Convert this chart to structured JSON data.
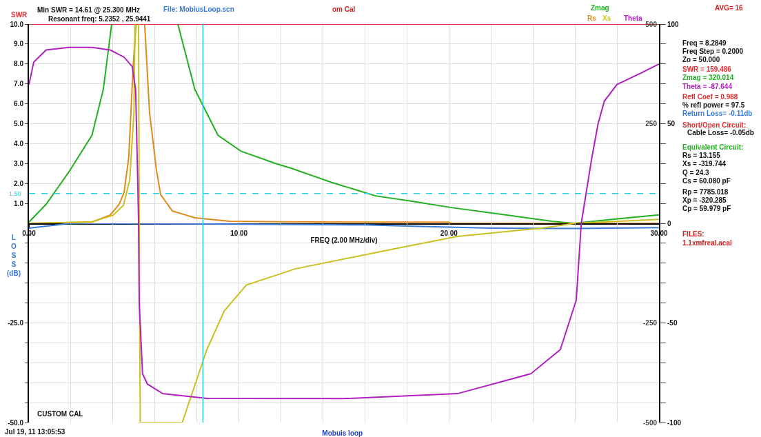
{
  "chart_data": [
    {
      "type": "line",
      "title": "Mobuis loop",
      "xlabel": "FREQ (2.00 MHz/div)",
      "xlim": [
        0,
        30
      ],
      "xticks": [
        {
          "value": 0,
          "label": "0.00"
        },
        {
          "value": 2,
          "label": null
        },
        {
          "value": 4,
          "label": null
        },
        {
          "value": 6,
          "label": null
        },
        {
          "value": 8,
          "label": null
        },
        {
          "value": 10,
          "label": "10.00"
        },
        {
          "value": 12,
          "label": null
        },
        {
          "value": 14,
          "label": null
        },
        {
          "value": 16,
          "label": null
        },
        {
          "value": 18,
          "label": null
        },
        {
          "value": 20,
          "label": "20.00"
        },
        {
          "value": 22,
          "label": null
        },
        {
          "value": 24,
          "label": null
        },
        {
          "value": 26,
          "label": null
        },
        {
          "value": 28,
          "label": null
        },
        {
          "value": 30,
          "label": "30.00"
        }
      ],
      "ylim": [
        0,
        10
      ],
      "yticks": [
        {
          "value": 1,
          "label": "1.0"
        },
        {
          "value": 2,
          "label": "2.0"
        },
        {
          "value": 3,
          "label": "3.0"
        },
        {
          "value": 4,
          "label": "4.0"
        },
        {
          "value": 5,
          "label": "5.0"
        },
        {
          "value": 6,
          "label": "6.0"
        },
        {
          "value": 7,
          "label": "7.0"
        },
        {
          "value": 8,
          "label": "8.0"
        },
        {
          "value": 9,
          "label": "9.0"
        },
        {
          "value": 10,
          "label": "10.0"
        }
      ],
      "y2lim": [
        0,
        500
      ],
      "y2ticks": [
        500,
        250
      ],
      "y3lim": [
        0,
        100
      ],
      "y3ticks": [
        100,
        {
          "value": 90,
          "label": null
        },
        {
          "value": 80,
          "label": null
        },
        {
          "value": 70,
          "label": null
        },
        {
          "value": 60,
          "label": null
        },
        50,
        {
          "value": 40,
          "label": null
        },
        {
          "value": 30,
          "label": null
        },
        {
          "value": 20,
          "label": null
        },
        {
          "value": 10,
          "label": null
        },
        0
      ],
      "series": [
        {
          "name": "SWR",
          "color": "#e03030",
          "x": [
            0,
            30
          ],
          "values": [
            10,
            10
          ]
        },
        {
          "name": "Zmag",
          "color": "#22b022",
          "axis": "y2",
          "x": [
            0,
            0.82,
            1.9,
            3.0,
            3.54,
            3.94,
            5.5,
            7.09,
            7.9,
            9.0,
            10.1,
            11.75,
            12.5,
            14.4,
            16.5,
            18.3,
            20.05,
            22.7,
            24.9,
            25.96,
            27.6,
            30
          ],
          "values": [
            3,
            48,
            129,
            221,
            336,
            500,
            null,
            500,
            336,
            221,
            181,
            150,
            138,
            103,
            69,
            55,
            40,
            21,
            5,
            0,
            9,
            21
          ]
        },
        {
          "name": "Rs",
          "color": "#e08a1e",
          "axis": "y2",
          "x": [
            0,
            2,
            3,
            3.87,
            4.3,
            4.53,
            4.75,
            4.96,
            5.1,
            5.3,
            5.51,
            5.74,
            6.07,
            6.27,
            6.83,
            7.9,
            9.55,
            12,
            16,
            20,
            20.1,
            30
          ],
          "values": [
            0,
            2,
            3,
            21,
            48,
            78,
            164,
            393,
            500,
            null,
            500,
            279,
            134,
            72,
            31,
            14,
            5,
            4,
            3,
            3,
            0,
            0
          ]
        },
        {
          "name": "Xs",
          "color": "#c8c020",
          "axis": "y2",
          "x": [
            0,
            2,
            3,
            4,
            4.5,
            4.8,
            5.0,
            5.05,
            5.15,
            5.22,
            5.25,
            15,
            26,
            30
          ],
          "values": [
            0,
            2,
            4,
            20,
            45,
            110,
            280,
            500,
            null,
            500,
            0,
            null,
            0,
            10
          ]
        },
        {
          "name": "Theta",
          "color": "#b020c0",
          "axis": "y3",
          "x": [
            0,
            0.23,
            0.82,
            1.9,
            3.0,
            3.87,
            4.53,
            4.92,
            5.08,
            5.18,
            5.22,
            15,
            26.3,
            26.8,
            27.1,
            27.4,
            28.0,
            29.1,
            30
          ],
          "values": [
            69.7,
            81,
            87,
            88.3,
            88.3,
            87,
            83.4,
            78.6,
            67,
            21,
            0,
            null,
            0,
            32.8,
            50,
            61.4,
            69.7,
            75.2,
            80
          ]
        }
      ],
      "ref_lines": [
        {
          "axis": "x",
          "value": 8.2849,
          "color": "#30d0e0",
          "line_style": "solid"
        },
        {
          "axis": "y",
          "value": 1.5,
          "label": "1.50",
          "color": "#30d0e0",
          "line_style": "dashed"
        }
      ],
      "annotations": [
        "Min SWR = 14.61 @ 25.300 MHz",
        "Resonant freq: 5.2352 , 25.9441",
        "File: MobiusLoop.scn",
        "om Cal",
        "AVG= 16",
        "Freq = 8.2849",
        "Freq Step = 0.2000",
        "Zo = 50.000",
        "SWR = 159.486",
        "Zmag = 320.014",
        "Theta = -87.644",
        "Refl Coef = 0.988",
        "% refl power = 97.5",
        "Return Loss= -0.11db",
        "Short/Open Circuit:",
        "Cable Loss= -0.05db",
        "Equivalent Circuit:",
        "Rs = 13.155",
        "Xs = -319.744",
        "Q = 24.3",
        "Cs = 60.080 pF",
        "Rp = 7785.018",
        "Xp = -320.285",
        "Cp = 59.979 pF",
        "FILES:",
        "1.1xmfreal.acal",
        "CUSTOM CAL",
        "Jul 19, 11 13:05:53"
      ],
      "grid": true,
      "legend": false,
      "marker": "none",
      "line_style": "solid"
    },
    {
      "type": "line",
      "ylabel": "LOSS (dB)",
      "tick_labels": "y",
      "xlim": [
        0,
        30
      ],
      "xticks": [
        0,
        2,
        4,
        6,
        8,
        10,
        12,
        14,
        16,
        18,
        20,
        22,
        24,
        26,
        28,
        30
      ],
      "ylim": [
        -50,
        0
      ],
      "yticks": [
        {
          "value": -5,
          "label": null
        },
        {
          "value": -10,
          "label": null
        },
        {
          "value": -15,
          "label": null
        },
        {
          "value": -20,
          "label": null
        },
        {
          "value": -25,
          "label": "-25.0"
        },
        {
          "value": -30,
          "label": null
        },
        {
          "value": -35,
          "label": null
        },
        {
          "value": -40,
          "label": null
        },
        {
          "value": -45,
          "label": null
        },
        {
          "value": -50,
          "label": "-50.0"
        }
      ],
      "y2lim": [
        -500,
        0
      ],
      "y2ticks": [
        -250,
        -500
      ],
      "y3lim": [
        -100,
        0
      ],
      "y3ticks": [
        {
          "value": -10,
          "label": null
        },
        {
          "value": -20,
          "label": null
        },
        {
          "value": -30,
          "label": null
        },
        {
          "value": -40,
          "label": null
        },
        -50,
        {
          "value": -60,
          "label": null
        },
        {
          "value": -70,
          "label": null
        },
        {
          "value": -80,
          "label": null
        },
        {
          "value": -90,
          "label": null
        },
        -100
      ],
      "series": [
        {
          "color": "#3a7ad8",
          "x": [
            0,
            1,
            2,
            10,
            16,
            18,
            22,
            26,
            30
          ],
          "values": [
            -1.2,
            -0.6,
            0,
            -0.2,
            -0.4,
            -0.7,
            -1.2,
            -1.3,
            -1.1
          ]
        },
        {
          "color": "#c8c020",
          "axis": "y2",
          "x": [
            5.25,
            5.3,
            7.3,
            8.47,
            9.3,
            10.35,
            12.7,
            17.4,
            20.4,
            24.4,
            26
          ],
          "values": [
            0,
            -500,
            -500,
            -317,
            -220,
            -155,
            -114,
            -64,
            -33,
            -12,
            0
          ]
        },
        {
          "color": "#b020c0",
          "axis": "y3",
          "x": [
            5.22,
            5.25,
            5.41,
            5.64,
            6.37,
            8.47,
            15,
            20.4,
            23.9,
            25.3,
            26.06,
            26.3
          ],
          "values": [
            0,
            -40,
            -75.5,
            -80.7,
            -85.5,
            -87.9,
            -88,
            -85.5,
            -75.5,
            -63.4,
            -38.6,
            0
          ]
        }
      ],
      "ref_lines": [
        {
          "axis": "x",
          "value": 8.2849,
          "color": "#30d0e0",
          "line_style": "solid"
        }
      ],
      "grid": true,
      "legend": false,
      "marker": "none",
      "line_style": "solid"
    }
  ]
}
